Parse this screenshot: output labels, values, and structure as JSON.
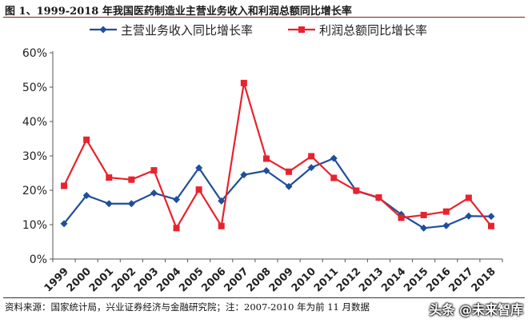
{
  "title": "图 1、1999-2018 年我国医药制造业主营业务收入和利润总额同比增长率",
  "source": "资料来源：国家统计局，兴业证券经济与金融研究院；注：2007-2010 年为前 11 月数据",
  "watermark": "头条 @未来智库",
  "chart_data": {
    "type": "line",
    "x": [
      "1999",
      "2000",
      "2001",
      "2002",
      "2003",
      "2004",
      "2005",
      "2006",
      "2007",
      "2008",
      "2009",
      "2010",
      "2011",
      "2012",
      "2013",
      "2014",
      "2015",
      "2016",
      "2017",
      "2018"
    ],
    "y_ticks": [
      "0%",
      "10%",
      "20%",
      "30%",
      "40%",
      "50%",
      "60%"
    ],
    "ylim": [
      0,
      60
    ],
    "legend_position": "top",
    "series": [
      {
        "name": "主营业务收入同比增长率",
        "color": "#1f4e9a",
        "marker": "diamond",
        "values": [
          10.3,
          18.5,
          16.1,
          16.1,
          19.2,
          17.3,
          26.5,
          16.9,
          24.5,
          25.7,
          21.1,
          26.6,
          29.3,
          19.8,
          17.8,
          13.0,
          9.0,
          9.7,
          12.5,
          12.4
        ]
      },
      {
        "name": "利润总额同比增长率",
        "color": "#e8232e",
        "marker": "square",
        "values": [
          21.3,
          34.7,
          23.7,
          23.1,
          25.8,
          9.0,
          20.2,
          9.6,
          51.2,
          29.2,
          25.4,
          29.9,
          23.6,
          19.9,
          17.9,
          12.0,
          12.8,
          13.8,
          17.8,
          9.6
        ]
      }
    ]
  }
}
